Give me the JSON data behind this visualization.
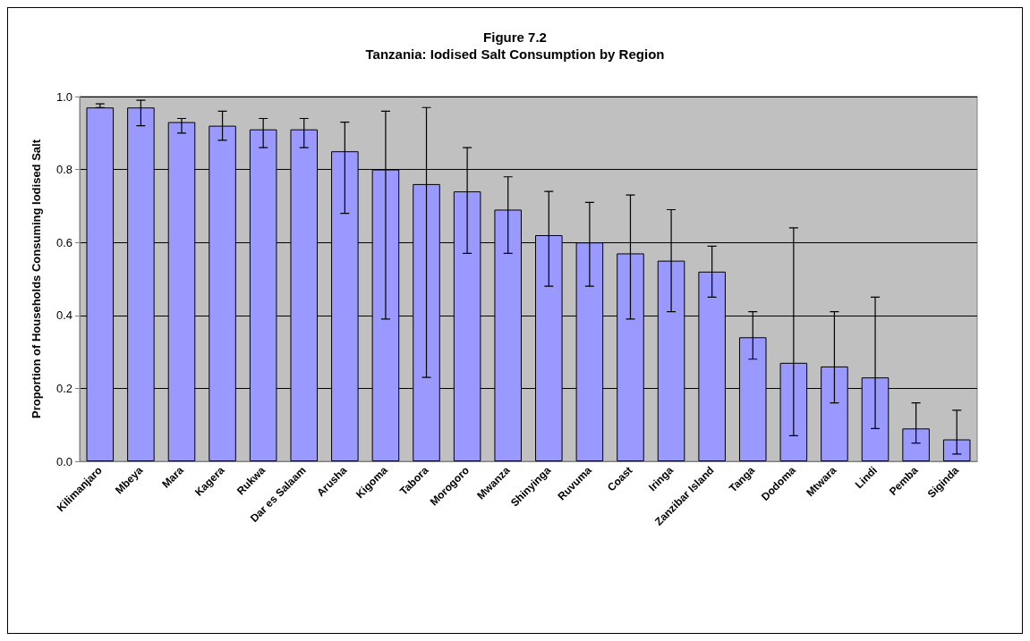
{
  "chart_data": {
    "type": "bar",
    "title": "Figure 7.2\nTanzania: Iodised Salt Consumption by Region",
    "ylabel": "Proportion of Households Consuming Iodised Salt",
    "categories": [
      "Kilimanjaro",
      "Mbeya",
      "Mara",
      "Kagera",
      "Rukwa",
      "Dar es Salaam",
      "Arusha",
      "Kigoma",
      "Tabora",
      "Morogoro",
      "Mwanza",
      "Shinyinga",
      "Ruvuma",
      "Coast",
      "Iringa",
      "Zanzibar Island",
      "Tanga",
      "Dodoma",
      "Mtwara",
      "Lindi",
      "Pemba",
      "Siginda"
    ],
    "values": [
      0.97,
      0.97,
      0.93,
      0.92,
      0.91,
      0.91,
      0.85,
      0.8,
      0.76,
      0.74,
      0.69,
      0.62,
      0.6,
      0.57,
      0.55,
      0.52,
      0.34,
      0.27,
      0.26,
      0.23,
      0.09,
      0.06
    ],
    "errors": [
      [
        0.97,
        0.98
      ],
      [
        0.92,
        0.99
      ],
      [
        0.9,
        0.94
      ],
      [
        0.88,
        0.96
      ],
      [
        0.86,
        0.94
      ],
      [
        0.86,
        0.94
      ],
      [
        0.68,
        0.93
      ],
      [
        0.39,
        0.96
      ],
      [
        0.23,
        0.97
      ],
      [
        0.57,
        0.86
      ],
      [
        0.57,
        0.78
      ],
      [
        0.48,
        0.74
      ],
      [
        0.48,
        0.71
      ],
      [
        0.39,
        0.73
      ],
      [
        0.41,
        0.69
      ],
      [
        0.45,
        0.59
      ],
      [
        0.28,
        0.41
      ],
      [
        0.07,
        0.64
      ],
      [
        0.16,
        0.41
      ],
      [
        0.09,
        0.45
      ],
      [
        0.05,
        0.16
      ],
      [
        0.02,
        0.14
      ]
    ],
    "color": "#9999ff",
    "ylim": [
      0,
      1
    ],
    "yticks": [
      {
        "value": 0,
        "label": "0.0"
      },
      {
        "value": 0.2,
        "label": "0.2"
      },
      {
        "value": 0.4,
        "label": "0.4"
      },
      {
        "value": 0.6,
        "label": "0.6"
      },
      {
        "value": 0.8,
        "label": "0.8"
      },
      {
        "value": 1,
        "label": "1.0"
      }
    ],
    "grid": "y"
  }
}
